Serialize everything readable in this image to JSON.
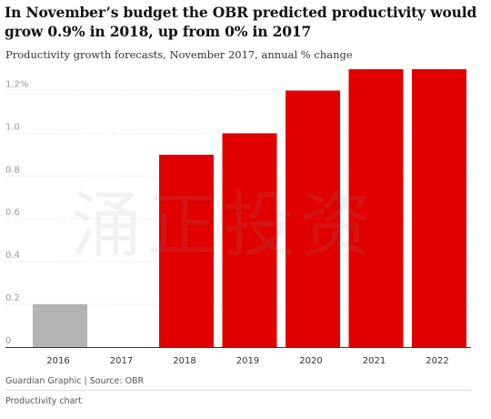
{
  "title": "In November’s budget the OBR predicted productivity would grow 0.9% in 2018, up from 0% in 2017",
  "subtitle": "Productivity growth forecasts, November 2017, annual % change",
  "source": "Guardian Graphic | Source: OBR",
  "footer_label": "Productivity chart",
  "watermark": "涌正投资",
  "chart_data": {
    "type": "bar",
    "categories": [
      "2016",
      "2017",
      "2018",
      "2019",
      "2020",
      "2021",
      "2022"
    ],
    "values": [
      0.2,
      0,
      0.9,
      1.0,
      1.2,
      1.3,
      1.3
    ],
    "colors": [
      "#b3b3b3",
      "#b3b3b3",
      "#e00000",
      "#e00000",
      "#e00000",
      "#e00000",
      "#e00000"
    ],
    "yticks": [
      {
        "value": 0,
        "label": "0"
      },
      {
        "value": 0.2,
        "label": "0.2"
      },
      {
        "value": 0.4,
        "label": "0.4"
      },
      {
        "value": 0.6,
        "label": "0.6"
      },
      {
        "value": 0.8,
        "label": "0.8"
      },
      {
        "value": 1.0,
        "label": "1.0"
      },
      {
        "value": 1.2,
        "label": "1.2%"
      }
    ],
    "ylim": [
      0,
      1.3
    ],
    "grid": true,
    "xlabel": "",
    "ylabel": ""
  }
}
